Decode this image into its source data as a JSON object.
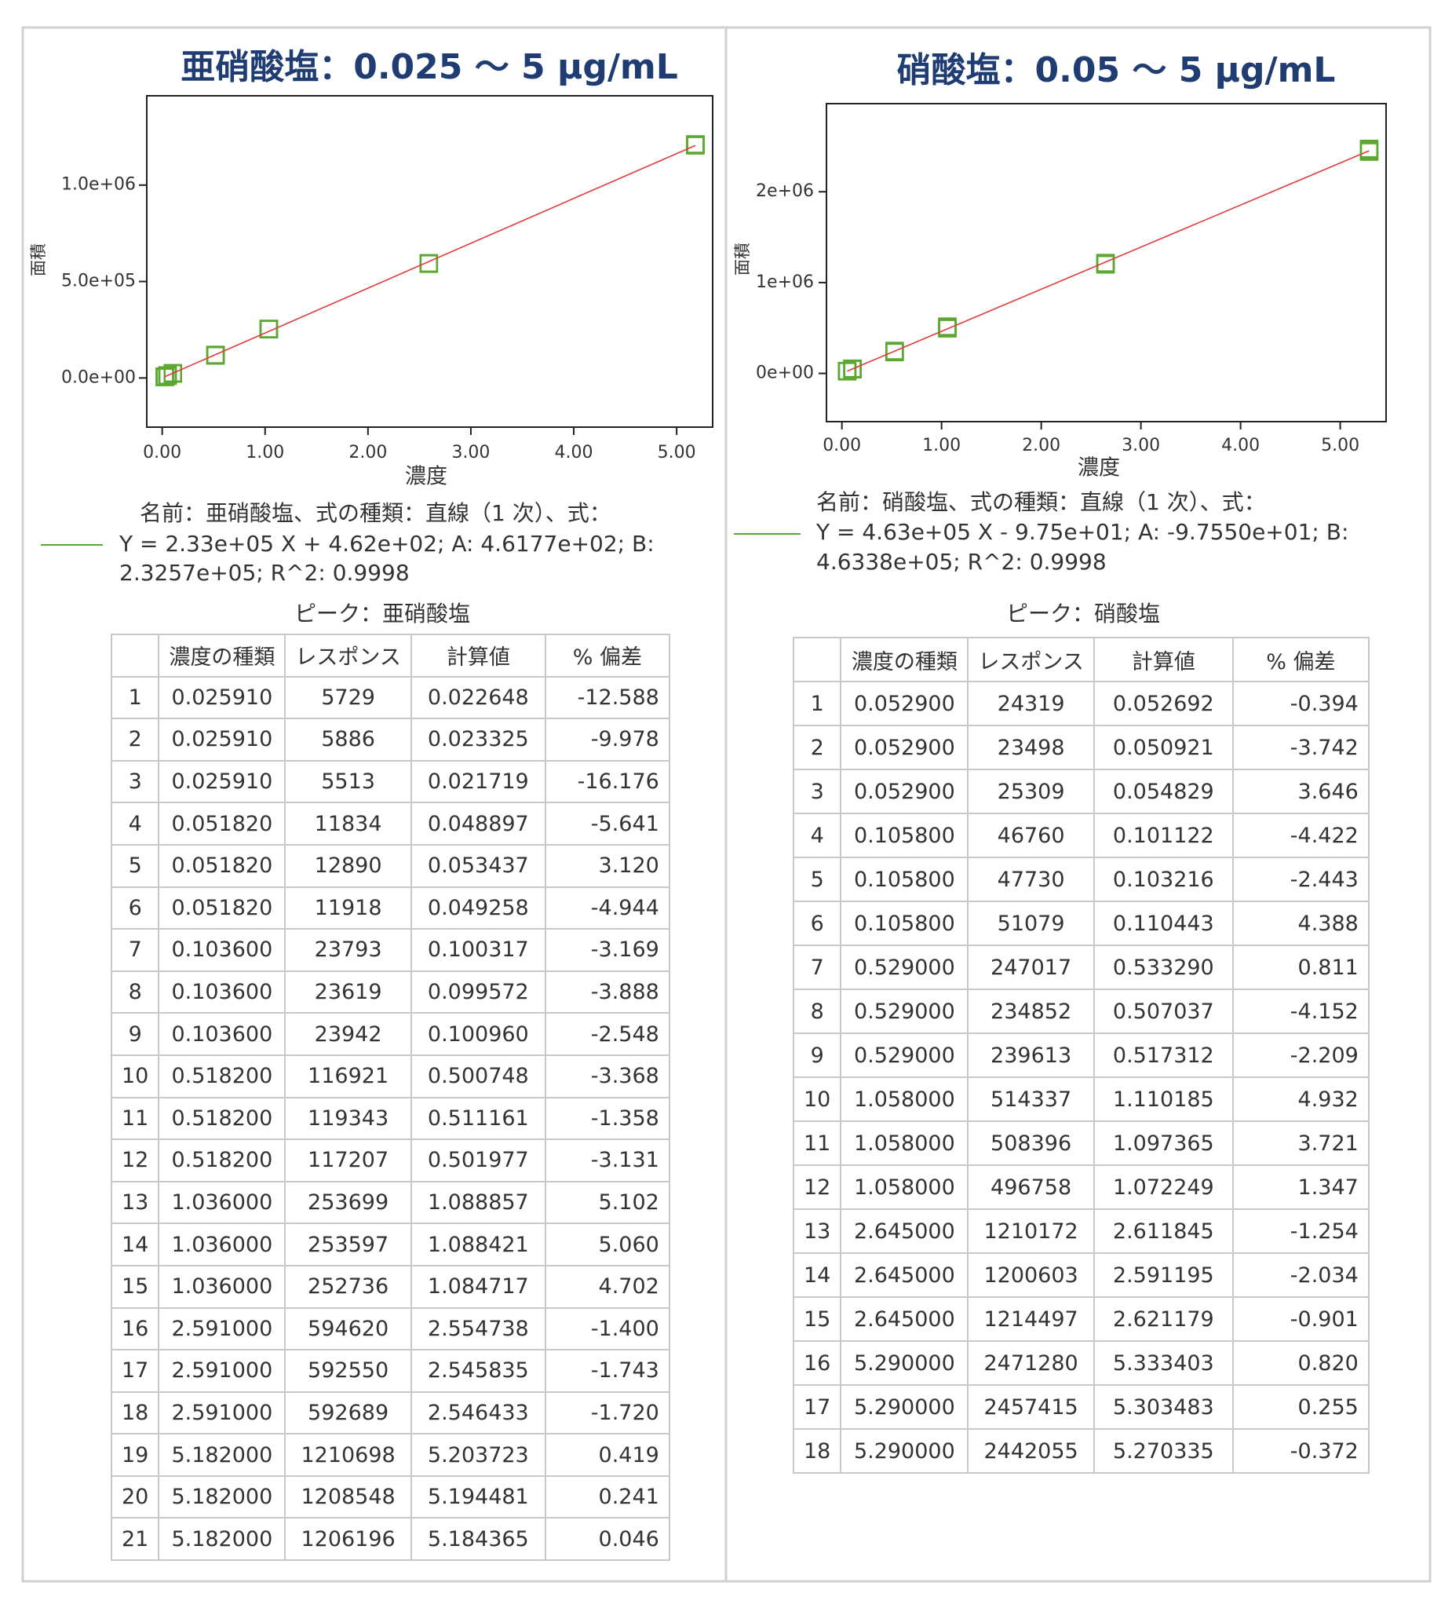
{
  "chart_data": [
    {
      "type": "scatter",
      "title": "亜硝酸塩：0.025 ～ 5 μg/mL",
      "x_label": "濃度",
      "y_label": "面積",
      "color": "#5aa830",
      "x": [
        0.02591,
        0.02591,
        0.02591,
        0.05182,
        0.05182,
        0.05182,
        0.1036,
        0.1036,
        0.1036,
        0.5182,
        0.5182,
        0.5182,
        1.036,
        1.036,
        1.036,
        2.591,
        2.591,
        2.591,
        5.182,
        5.182,
        5.182
      ],
      "values": [
        5729,
        5886,
        5513,
        11834,
        12890,
        11918,
        23793,
        23619,
        23942,
        116921,
        119343,
        117207,
        253699,
        253597,
        252736,
        594620,
        592550,
        592689,
        1210698,
        1208548,
        1206196
      ],
      "fit": {
        "intercept": 461.77,
        "slope": 232570,
        "color": "#e03c3c"
      },
      "equation_lines": [
        "名前：亜硝酸塩、式の種類：直線（1 次）、式：",
        "Y = 2.33e+05 X + 4.62e+02;   A: 4.6177e+02;   B:",
        "2.3257e+05;   R^2:  0.9998"
      ],
      "xlim": [
        -0.15,
        5.35
      ],
      "ylim": [
        -255000,
        1463000
      ],
      "xticks": [
        {
          "value": 0,
          "label": "0.00"
        },
        {
          "value": 1,
          "label": "1.00"
        },
        {
          "value": 2,
          "label": "2.00"
        },
        {
          "value": 3,
          "label": "3.00"
        },
        {
          "value": 4,
          "label": "4.00"
        },
        {
          "value": 5,
          "label": "5.00"
        }
      ],
      "yticks": [
        {
          "value": 0,
          "label": "0.0e+00"
        },
        {
          "value": 500000,
          "label": "5.0e+05"
        },
        {
          "value": 1000000,
          "label": "1.0e+06"
        }
      ]
    },
    {
      "type": "scatter",
      "title": "硝酸塩：0.05 ～ 5 μg/mL",
      "x_label": "濃度",
      "y_label": "面積",
      "color": "#5aa830",
      "x": [
        0.0529,
        0.0529,
        0.0529,
        0.1058,
        0.1058,
        0.1058,
        0.529,
        0.529,
        0.529,
        1.058,
        1.058,
        1.058,
        2.645,
        2.645,
        2.645,
        5.29,
        5.29,
        5.29
      ],
      "values": [
        24319,
        23498,
        25309,
        46760,
        47730,
        51079,
        247017,
        234852,
        239613,
        514337,
        508396,
        496758,
        1210172,
        1200603,
        1214497,
        2471280,
        2457415,
        2442055
      ],
      "fit": {
        "intercept": -97.55,
        "slope": 463380,
        "color": "#e03c3c"
      },
      "equation_lines": [
        "名前：硝酸塩、式の種類：直線（1 次）、式：",
        "Y = 4.63e+05 X - 9.75e+01;   A: -9.7550e+01;   B:",
        "4.6338e+05;   R^2:  0.9998"
      ],
      "xlim": [
        -0.155,
        5.46
      ],
      "ylim": [
        -531000,
        2970000
      ],
      "xticks": [
        {
          "value": 0,
          "label": "0.00"
        },
        {
          "value": 1,
          "label": "1.00"
        },
        {
          "value": 2,
          "label": "2.00"
        },
        {
          "value": 3,
          "label": "3.00"
        },
        {
          "value": 4,
          "label": "4.00"
        },
        {
          "value": 5,
          "label": "5.00"
        }
      ],
      "yticks": [
        {
          "value": 0,
          "label": "0e+00"
        },
        {
          "value": 1000000,
          "label": "1e+06"
        },
        {
          "value": 2000000,
          "label": "2e+06"
        }
      ]
    }
  ],
  "tables": [
    {
      "caption": "ピーク：亜硝酸塩",
      "header": [
        "濃度の種類",
        "レスポンス",
        "計算値",
        "% 偏差"
      ],
      "rows": [
        [
          "1",
          "0.025910",
          "5729",
          "0.022648",
          "-12.588"
        ],
        [
          "2",
          "0.025910",
          "5886",
          "0.023325",
          "-9.978"
        ],
        [
          "3",
          "0.025910",
          "5513",
          "0.021719",
          "-16.176"
        ],
        [
          "4",
          "0.051820",
          "11834",
          "0.048897",
          "-5.641"
        ],
        [
          "5",
          "0.051820",
          "12890",
          "0.053437",
          "3.120"
        ],
        [
          "6",
          "0.051820",
          "11918",
          "0.049258",
          "-4.944"
        ],
        [
          "7",
          "0.103600",
          "23793",
          "0.100317",
          "-3.169"
        ],
        [
          "8",
          "0.103600",
          "23619",
          "0.099572",
          "-3.888"
        ],
        [
          "9",
          "0.103600",
          "23942",
          "0.100960",
          "-2.548"
        ],
        [
          "10",
          "0.518200",
          "116921",
          "0.500748",
          "-3.368"
        ],
        [
          "11",
          "0.518200",
          "119343",
          "0.511161",
          "-1.358"
        ],
        [
          "12",
          "0.518200",
          "117207",
          "0.501977",
          "-3.131"
        ],
        [
          "13",
          "1.036000",
          "253699",
          "1.088857",
          "5.102"
        ],
        [
          "14",
          "1.036000",
          "253597",
          "1.088421",
          "5.060"
        ],
        [
          "15",
          "1.036000",
          "252736",
          "1.084717",
          "4.702"
        ],
        [
          "16",
          "2.591000",
          "594620",
          "2.554738",
          "-1.400"
        ],
        [
          "17",
          "2.591000",
          "592550",
          "2.545835",
          "-1.743"
        ],
        [
          "18",
          "2.591000",
          "592689",
          "2.546433",
          "-1.720"
        ],
        [
          "19",
          "5.182000",
          "1210698",
          "5.203723",
          "0.419"
        ],
        [
          "20",
          "5.182000",
          "1208548",
          "5.194481",
          "0.241"
        ],
        [
          "21",
          "5.182000",
          "1206196",
          "5.184365",
          "0.046"
        ]
      ]
    },
    {
      "caption": "ピーク：硝酸塩",
      "header": [
        "濃度の種類",
        "レスポンス",
        "計算値",
        "% 偏差"
      ],
      "rows": [
        [
          "1",
          "0.052900",
          "24319",
          "0.052692",
          "-0.394"
        ],
        [
          "2",
          "0.052900",
          "23498",
          "0.050921",
          "-3.742"
        ],
        [
          "3",
          "0.052900",
          "25309",
          "0.054829",
          "3.646"
        ],
        [
          "4",
          "0.105800",
          "46760",
          "0.101122",
          "-4.422"
        ],
        [
          "5",
          "0.105800",
          "47730",
          "0.103216",
          "-2.443"
        ],
        [
          "6",
          "0.105800",
          "51079",
          "0.110443",
          "4.388"
        ],
        [
          "7",
          "0.529000",
          "247017",
          "0.533290",
          "0.811"
        ],
        [
          "8",
          "0.529000",
          "234852",
          "0.507037",
          "-4.152"
        ],
        [
          "9",
          "0.529000",
          "239613",
          "0.517312",
          "-2.209"
        ],
        [
          "10",
          "1.058000",
          "514337",
          "1.110185",
          "4.932"
        ],
        [
          "11",
          "1.058000",
          "508396",
          "1.097365",
          "3.721"
        ],
        [
          "12",
          "1.058000",
          "496758",
          "1.072249",
          "1.347"
        ],
        [
          "13",
          "2.645000",
          "1210172",
          "2.611845",
          "-1.254"
        ],
        [
          "14",
          "2.645000",
          "1200603",
          "2.591195",
          "-2.034"
        ],
        [
          "15",
          "2.645000",
          "1214497",
          "2.621179",
          "-0.901"
        ],
        [
          "16",
          "5.290000",
          "2471280",
          "5.333403",
          "0.820"
        ],
        [
          "17",
          "5.290000",
          "2457415",
          "5.303483",
          "0.255"
        ],
        [
          "18",
          "5.290000",
          "2442055",
          "5.270335",
          "-0.372"
        ]
      ]
    }
  ]
}
